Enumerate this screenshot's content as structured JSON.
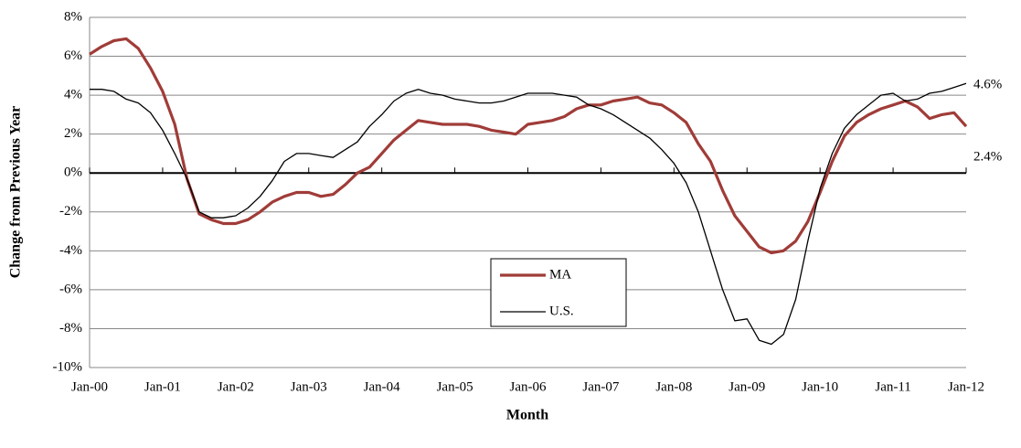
{
  "chart_data": {
    "type": "line",
    "ylabel": "Change from Previous Year",
    "xlabel": "Month",
    "categories": [
      "Jan-00",
      null,
      null,
      null,
      null,
      null,
      "Jan-01",
      null,
      null,
      null,
      null,
      null,
      "Jan-02",
      null,
      null,
      null,
      null,
      null,
      "Jan-03",
      null,
      null,
      null,
      null,
      null,
      "Jan-04",
      null,
      null,
      null,
      null,
      null,
      "Jan-05",
      null,
      null,
      null,
      null,
      null,
      "Jan-06",
      null,
      null,
      null,
      null,
      null,
      "Jan-07",
      null,
      null,
      null,
      null,
      null,
      "Jan-08",
      null,
      null,
      null,
      null,
      null,
      "Jan-09",
      null,
      null,
      null,
      null,
      null,
      "Jan-10",
      null,
      null,
      null,
      null,
      null,
      "Jan-11",
      null,
      null,
      null,
      null,
      null,
      "Jan-12"
    ],
    "series": [
      {
        "name": "MA",
        "color": "#a03c38",
        "values": [
          6.1,
          6.5,
          6.8,
          6.9,
          6.4,
          5.4,
          4.2,
          2.5,
          -0.3,
          -2.1,
          -2.4,
          -2.6,
          -2.6,
          -2.4,
          -2.0,
          -1.5,
          -1.2,
          -1.0,
          -1.0,
          -1.2,
          -1.1,
          -0.6,
          0.0,
          0.3,
          1.0,
          1.7,
          2.2,
          2.7,
          2.6,
          2.5,
          2.5,
          2.5,
          2.4,
          2.2,
          2.1,
          2.0,
          2.5,
          2.6,
          2.7,
          2.9,
          3.3,
          3.5,
          3.5,
          3.7,
          3.8,
          3.9,
          3.6,
          3.5,
          3.1,
          2.6,
          1.5,
          0.6,
          -0.9,
          -2.2,
          -3.0,
          -3.8,
          -4.1,
          -4.0,
          -3.5,
          -2.5,
          -1.0,
          0.6,
          1.9,
          2.6,
          3.0,
          3.3,
          3.5,
          3.7,
          3.4,
          2.8,
          3.0,
          3.1,
          2.4
        ]
      },
      {
        "name": "U.S.",
        "color": "#000000",
        "values": [
          4.3,
          4.3,
          4.2,
          3.8,
          3.6,
          3.1,
          2.2,
          1.0,
          -0.3,
          -2.0,
          -2.3,
          -2.3,
          -2.2,
          -1.8,
          -1.2,
          -0.4,
          0.6,
          1.0,
          1.0,
          0.9,
          0.8,
          1.2,
          1.6,
          2.4,
          3.0,
          3.7,
          4.1,
          4.3,
          4.1,
          4.0,
          3.8,
          3.7,
          3.6,
          3.6,
          3.7,
          3.9,
          4.1,
          4.1,
          4.1,
          4.0,
          3.9,
          3.5,
          3.3,
          3.0,
          2.6,
          2.2,
          1.8,
          1.2,
          0.5,
          -0.5,
          -2.0,
          -4.0,
          -6.0,
          -7.6,
          -7.5,
          -8.6,
          -8.8,
          -8.3,
          -6.5,
          -3.5,
          -0.8,
          1.0,
          2.3,
          3.0,
          3.5,
          4.0,
          4.1,
          3.7,
          3.8,
          4.1,
          4.2,
          4.4,
          4.6
        ]
      }
    ],
    "ylim": [
      -10,
      8
    ],
    "yticks": [
      {
        "value": -10,
        "label": "-10%"
      },
      {
        "value": -8,
        "label": "-8%"
      },
      {
        "value": -6,
        "label": "-6%"
      },
      {
        "value": -4,
        "label": "-4%"
      },
      {
        "value": -2,
        "label": "-2%"
      },
      {
        "value": 0,
        "label": "0%"
      },
      {
        "value": 2,
        "label": "2%"
      },
      {
        "value": 4,
        "label": "4%"
      },
      {
        "value": 6,
        "label": "6%"
      },
      {
        "value": 8,
        "label": "8%"
      }
    ],
    "grid": true,
    "legend": "lower center",
    "annotations": [
      "4.6%",
      "2.4%"
    ]
  }
}
